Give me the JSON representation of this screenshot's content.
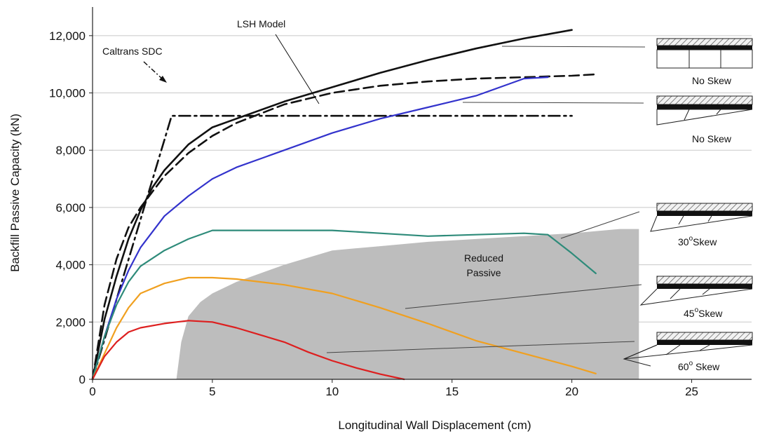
{
  "chart_data": {
    "type": "line",
    "title": "",
    "xlabel": "Longitudinal Wall Displacement (cm)",
    "ylabel": "Backfill Passive Capacity (kN)",
    "xlim": [
      0,
      27.5
    ],
    "ylim": [
      0,
      13000
    ],
    "x_ticks": [
      0,
      5,
      10,
      15,
      20,
      25
    ],
    "x_tick_labels": [
      "0",
      "5",
      "10",
      "15",
      "20",
      "25"
    ],
    "y_ticks": [
      0,
      2000,
      4000,
      6000,
      8000,
      10000,
      12000
    ],
    "y_tick_labels": [
      "0",
      "2,000",
      "4,000",
      "6,000",
      "8,000",
      "10,000",
      "12,000"
    ],
    "grid": "horizontal",
    "series": [
      {
        "style": "solid",
        "color": "#111111",
        "x": [
          0,
          0.5,
          1,
          1.5,
          2,
          2.5,
          3,
          4,
          5,
          6,
          8,
          10,
          12,
          14,
          16,
          18,
          20
        ],
        "y": [
          0,
          2100,
          3600,
          4900,
          5900,
          6700,
          7300,
          8200,
          8800,
          9100,
          9700,
          10200,
          10700,
          11150,
          11550,
          11900,
          12200
        ]
      },
      {
        "style": "dashed",
        "color": "#111111",
        "x": [
          0,
          0.5,
          1,
          1.5,
          2,
          3,
          4,
          5,
          6,
          8,
          10,
          12,
          14,
          16,
          18,
          20,
          21
        ],
        "y": [
          0,
          2600,
          4200,
          5300,
          6000,
          7100,
          7900,
          8500,
          8950,
          9600,
          10000,
          10250,
          10400,
          10500,
          10550,
          10600,
          10650
        ]
      },
      {
        "style": "dashdot",
        "color": "#111111",
        "x": [
          0,
          3.3,
          5,
          10,
          15,
          20
        ],
        "y": [
          0,
          9200,
          9200,
          9200,
          9200,
          9200
        ]
      },
      {
        "style": "solid",
        "color": "#3333cc",
        "x": [
          0,
          0.5,
          1,
          1.5,
          2,
          3,
          4,
          5,
          6,
          8,
          10,
          12,
          14,
          16,
          17,
          18,
          19
        ],
        "y": [
          0,
          1500,
          2800,
          3800,
          4600,
          5700,
          6400,
          7000,
          7400,
          8000,
          8600,
          9100,
          9500,
          9900,
          10200,
          10500,
          10550
        ]
      },
      {
        "style": "solid",
        "color": "#2e8b7a",
        "x": [
          0,
          0.5,
          1,
          1.5,
          2,
          3,
          4,
          5,
          6,
          8,
          10,
          12,
          14,
          16,
          18,
          19,
          20,
          21
        ],
        "y": [
          0,
          1500,
          2600,
          3400,
          3950,
          4500,
          4900,
          5200,
          5200,
          5200,
          5200,
          5100,
          5000,
          5050,
          5100,
          5050,
          4400,
          3700
        ]
      },
      {
        "style": "solid",
        "color": "#f0a020",
        "x": [
          0,
          0.5,
          1,
          1.5,
          2,
          3,
          4,
          5,
          6,
          8,
          10,
          12,
          14,
          16,
          18,
          20,
          21
        ],
        "y": [
          0,
          900,
          1800,
          2500,
          3000,
          3350,
          3550,
          3550,
          3500,
          3300,
          3000,
          2500,
          1950,
          1350,
          900,
          450,
          200
        ]
      },
      {
        "style": "solid",
        "color": "#dd1f1f",
        "x": [
          0,
          0.5,
          1,
          1.5,
          2,
          3,
          4,
          5,
          6,
          7,
          8,
          9,
          10,
          11,
          12,
          13
        ],
        "y": [
          0,
          800,
          1300,
          1650,
          1800,
          1950,
          2050,
          2000,
          1800,
          1550,
          1300,
          950,
          650,
          400,
          180,
          0
        ]
      }
    ],
    "shaded_region": {
      "label": "Reduced Passive",
      "color": "#bdbdbd",
      "x": [
        3.5,
        3.7,
        4,
        4.5,
        5,
        6,
        7,
        8,
        10,
        12,
        14,
        16,
        18,
        20,
        22,
        22.8,
        22.8
      ],
      "y": [
        0,
        1300,
        2200,
        2700,
        3000,
        3400,
        3700,
        4000,
        4500,
        4650,
        4800,
        4900,
        5000,
        5100,
        5250,
        5250,
        0
      ]
    },
    "annotations": {
      "caltrans": "Caltrans SDC",
      "lsh": "LSH Model",
      "reduced_passive_line1": "Reduced",
      "reduced_passive_line2": "Passive"
    },
    "skew_labels": [
      {
        "prefix": "No Skew",
        "sup": "",
        "suffix": ""
      },
      {
        "prefix": "No Skew",
        "sup": "",
        "suffix": ""
      },
      {
        "prefix": "30",
        "sup": "o",
        "suffix": "Skew"
      },
      {
        "prefix": "45",
        "sup": "o",
        "suffix": "Skew"
      },
      {
        "prefix": "60",
        "sup": "o",
        "suffix": " Skew"
      }
    ]
  }
}
